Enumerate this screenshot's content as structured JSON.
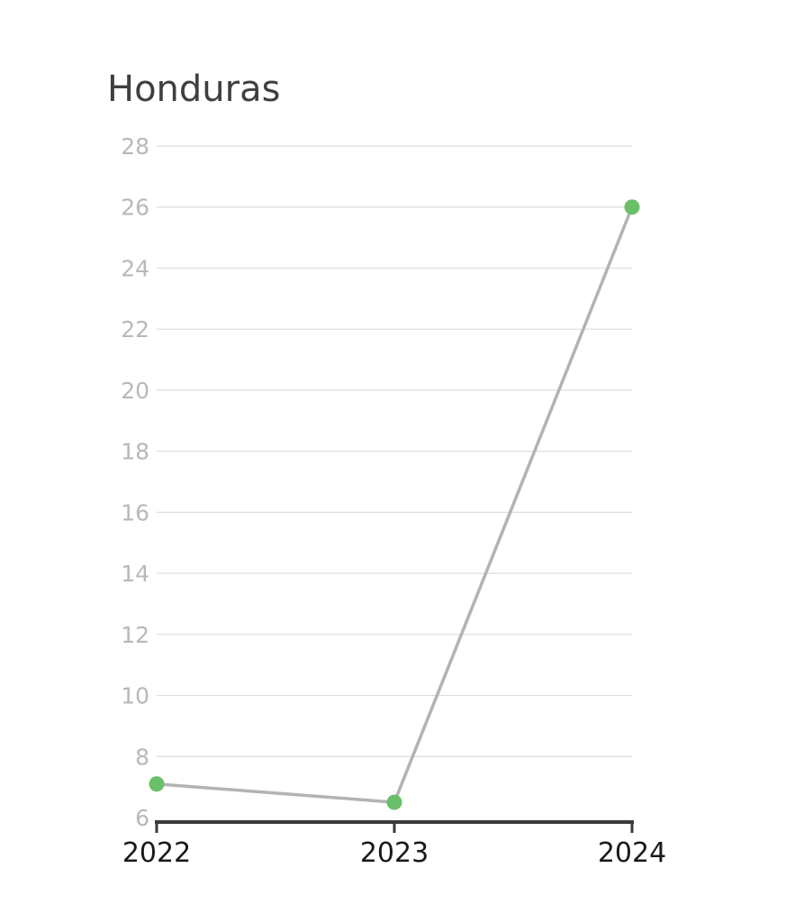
{
  "chart_data": {
    "type": "line",
    "title": "Honduras",
    "xlabel": "",
    "ylabel": "",
    "categories": [
      "2022",
      "2023",
      "2024"
    ],
    "series": [
      {
        "values": [
          7.1,
          6.5,
          26
        ]
      }
    ],
    "ylim": [
      6,
      28
    ],
    "yticks": [
      6,
      8,
      10,
      12,
      14,
      16,
      18,
      20,
      22,
      24,
      26,
      28
    ],
    "grid": true,
    "colors": {
      "line": "#b3b3b3",
      "marker": "#6abf69",
      "grid": "#dedede",
      "axis": "#3a3a3a",
      "ytick_label": "#b8b8b8",
      "xtick_label": "#1a1a1a",
      "title": "#3f3f3f"
    }
  }
}
